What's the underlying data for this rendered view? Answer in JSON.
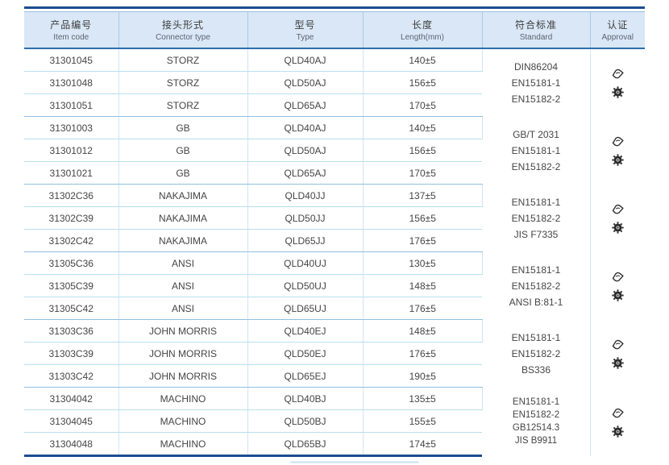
{
  "colors": {
    "top_rule": "#1c4c8e",
    "header_background": "#d9e7f6",
    "header_underline": "#2e6cb0",
    "inner_row_line": "#b9dff0",
    "group_line": "#8fc0e0",
    "text": "#454545"
  },
  "icons": {
    "approval_top": "certificate-stamp-icon",
    "approval_bottom": "wheelmark-gear-icon"
  },
  "table": {
    "headers": [
      {
        "zh": "产品编号",
        "en": "Item code"
      },
      {
        "zh": "接头形式",
        "en": "Connector type"
      },
      {
        "zh": "型号",
        "en": "Type"
      },
      {
        "zh": "长度",
        "en": "Length(mm)"
      },
      {
        "zh": "符合标准",
        "en": "Standard"
      },
      {
        "zh": "认证",
        "en": "Approval"
      }
    ],
    "groups": [
      {
        "connector_type": "STORZ",
        "standards": [
          "DIN86204",
          "EN15181-1",
          "EN15182-2"
        ],
        "rows": [
          {
            "item_code": "31301045",
            "type": "QLD40AJ",
            "length": "140±5"
          },
          {
            "item_code": "31301048",
            "type": "QLD50AJ",
            "length": "156±5"
          },
          {
            "item_code": "31301051",
            "type": "QLD65AJ",
            "length": "170±5"
          }
        ]
      },
      {
        "connector_type": "GB",
        "standards": [
          "GB/T 2031",
          "EN15181-1",
          "EN15182-2"
        ],
        "rows": [
          {
            "item_code": "31301003",
            "type": "QLD40AJ",
            "length": "140±5"
          },
          {
            "item_code": "31301012",
            "type": "QLD50AJ",
            "length": "156±5"
          },
          {
            "item_code": "31301021",
            "type": "QLD65AJ",
            "length": "170±5"
          }
        ]
      },
      {
        "connector_type": "NAKAJIMA",
        "standards": [
          "EN15181-1",
          "EN15182-2",
          "JIS F7335"
        ],
        "rows": [
          {
            "item_code": "31302C36",
            "type": "QLD40JJ",
            "length": "137±5"
          },
          {
            "item_code": "31302C39",
            "type": "QLD50JJ",
            "length": "156±5"
          },
          {
            "item_code": "31302C42",
            "type": "QLD65JJ",
            "length": "176±5"
          }
        ]
      },
      {
        "connector_type": "ANSI",
        "standards": [
          "EN15181-1",
          "EN15182-2",
          "ANSI B:81-1"
        ],
        "rows": [
          {
            "item_code": "31305C36",
            "type": "QLD40UJ",
            "length": "130±5"
          },
          {
            "item_code": "31305C39",
            "type": "QLD50UJ",
            "length": "148±5"
          },
          {
            "item_code": "31305C42",
            "type": "QLD65UJ",
            "length": "176±5"
          }
        ]
      },
      {
        "connector_type": "JOHN MORRIS",
        "standards": [
          "EN15181-1",
          "EN15182-2",
          "BS336"
        ],
        "rows": [
          {
            "item_code": "31303C36",
            "type": "QLD40EJ",
            "length": "148±5"
          },
          {
            "item_code": "31303C39",
            "type": "QLD50EJ",
            "length": "176±5"
          },
          {
            "item_code": "31303C42",
            "type": "QLD65EJ",
            "length": "190±5"
          }
        ]
      },
      {
        "connector_type": "MACHINO",
        "standards": [
          "EN15181-1",
          "EN15182-2",
          "GB12514.3",
          "JIS B9911"
        ],
        "rows": [
          {
            "item_code": "31304042",
            "type": "QLD40BJ",
            "length": "135±5"
          },
          {
            "item_code": "31304045",
            "type": "QLD50BJ",
            "length": "155±5"
          },
          {
            "item_code": "31304048",
            "type": "QLD65BJ",
            "length": "174±5"
          }
        ]
      }
    ]
  }
}
